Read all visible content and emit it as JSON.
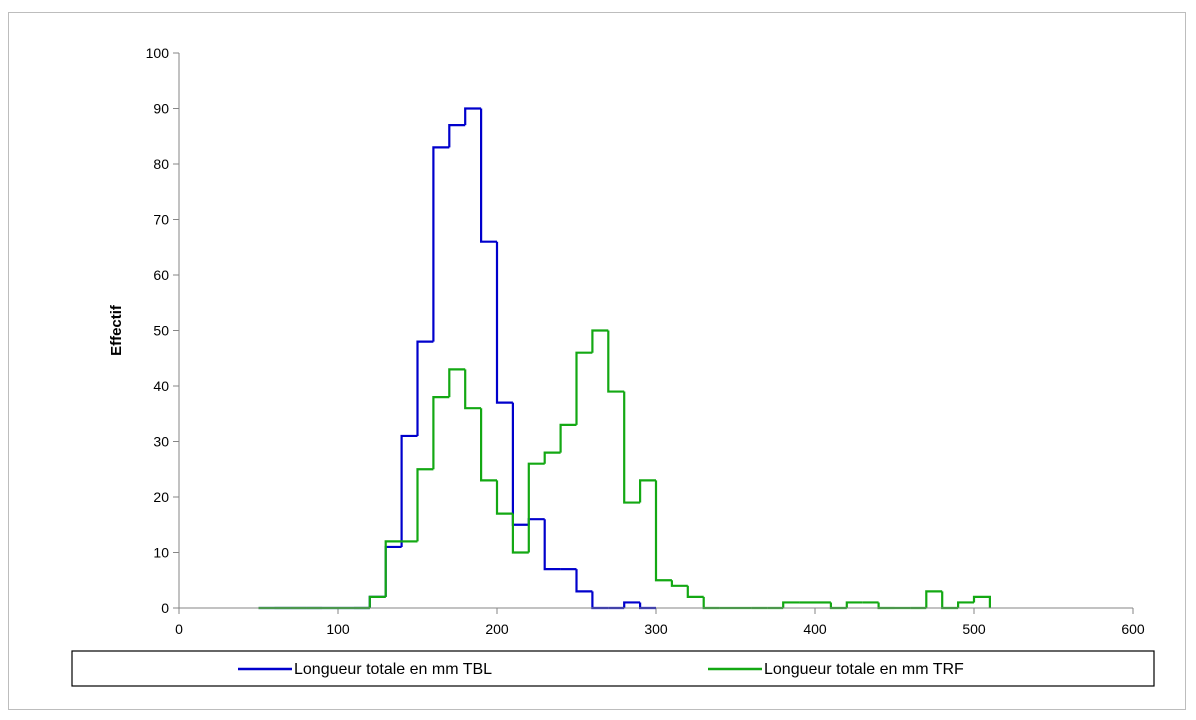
{
  "chart_data": {
    "type": "line",
    "subtype": "step-histogram",
    "title": "",
    "xlabel": "",
    "ylabel": "Effectif",
    "xlim": [
      0,
      600
    ],
    "ylim": [
      0,
      100
    ],
    "x_ticks": [
      0,
      100,
      200,
      300,
      400,
      500,
      600
    ],
    "y_ticks": [
      0,
      10,
      20,
      30,
      40,
      50,
      60,
      70,
      80,
      90,
      100
    ],
    "grid": false,
    "legend_position": "bottom",
    "bin_width": 10,
    "series": [
      {
        "name": "Longueur totale en mm TBL",
        "color": "#0000cc",
        "x": [
          50,
          60,
          70,
          80,
          90,
          100,
          110,
          120,
          130,
          140,
          150,
          160,
          170,
          180,
          190,
          200,
          210,
          220,
          230,
          240,
          250,
          260,
          270,
          280,
          290
        ],
        "values": [
          0,
          0,
          0,
          0,
          0,
          0,
          0,
          2,
          11,
          31,
          48,
          83,
          87,
          90,
          66,
          37,
          15,
          16,
          7,
          7,
          3,
          0,
          0,
          1,
          0
        ]
      },
      {
        "name": "Longueur totale en mm TRF",
        "color": "#13a813",
        "x": [
          50,
          60,
          70,
          80,
          90,
          100,
          110,
          120,
          130,
          140,
          150,
          160,
          170,
          180,
          190,
          200,
          210,
          220,
          230,
          240,
          250,
          260,
          270,
          280,
          290,
          300,
          310,
          320,
          330,
          340,
          350,
          360,
          370,
          380,
          390,
          400,
          410,
          420,
          430,
          440,
          450,
          460,
          470,
          480,
          490,
          500
        ],
        "values": [
          0,
          0,
          0,
          0,
          0,
          0,
          0,
          2,
          12,
          12,
          25,
          38,
          43,
          36,
          23,
          17,
          10,
          26,
          28,
          33,
          46,
          50,
          39,
          19,
          23,
          5,
          4,
          2,
          0,
          0,
          0,
          0,
          0,
          1,
          1,
          1,
          0,
          1,
          1,
          0,
          0,
          0,
          3,
          0,
          1,
          2
        ]
      }
    ]
  }
}
